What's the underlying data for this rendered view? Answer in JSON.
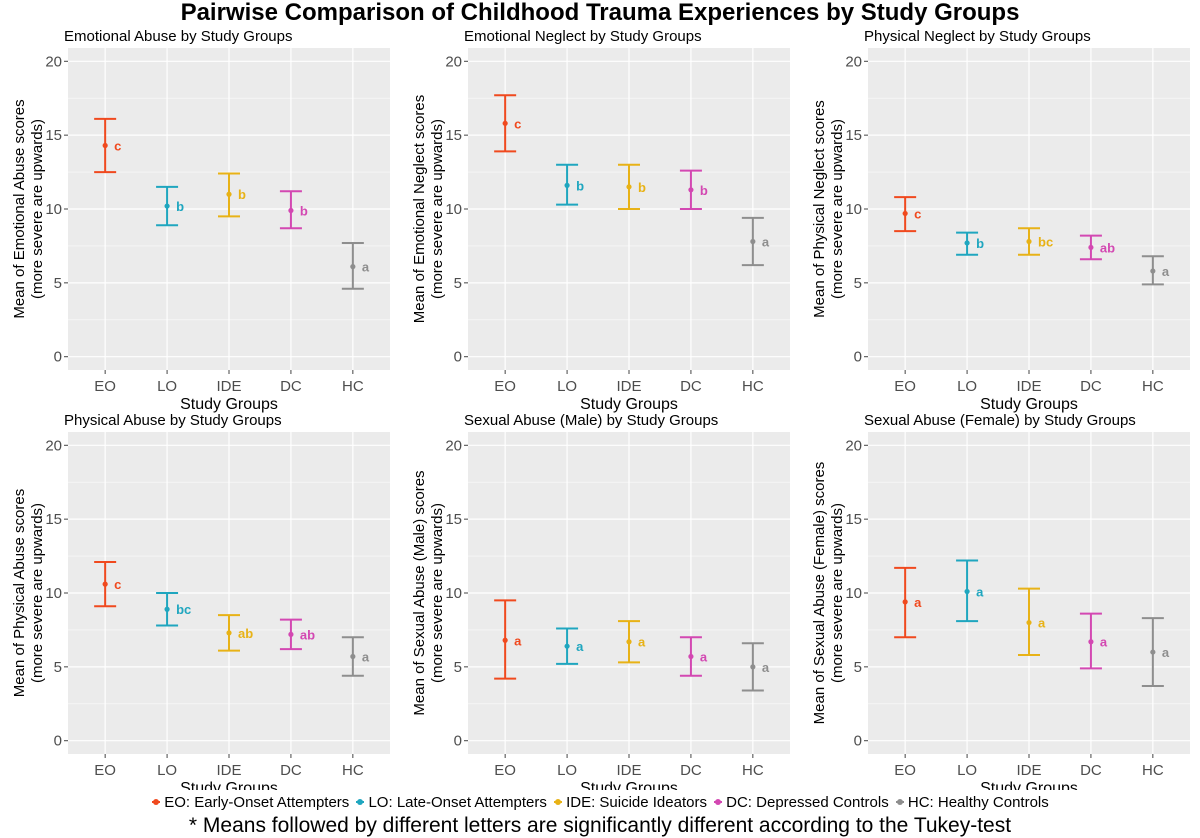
{
  "title": "Pairwise Comparison of Childhood Trauma Experiences by Study Groups",
  "footnote": "* Means followed by different letters are significantly different according to the Tukey-test",
  "colors": {
    "EO": "#f0491e",
    "LO": "#1fa6bf",
    "IDE": "#e8b216",
    "DC": "#d348b2",
    "HC": "#8e8e8e",
    "panel_bg": "#ebebeb",
    "grid": "#ffffff"
  },
  "legend": [
    {
      "key": "EO",
      "label": "EO: Early-Onset Attempters"
    },
    {
      "key": "LO",
      "label": "LO: Late-Onset Attempters"
    },
    {
      "key": "IDE",
      "label": "IDE: Suicide Ideators"
    },
    {
      "key": "DC",
      "label": "DC: Depressed Controls"
    },
    {
      "key": "HC",
      "label": "HC: Healthy Controls"
    }
  ],
  "chart_data": [
    {
      "type": "errorbar",
      "title": "Emotional Abuse by Study Groups",
      "xlabel": "Study Groups",
      "ylabel": [
        "Mean of Emotional Abuse scores",
        "(more severe are upwards)"
      ],
      "categories": [
        "EO",
        "LO",
        "IDE",
        "DC",
        "HC"
      ],
      "ylim": [
        0,
        20
      ],
      "yticks": [
        0,
        5,
        10,
        15,
        20
      ],
      "mean": [
        14.3,
        10.2,
        11.0,
        9.9,
        6.1
      ],
      "lower": [
        12.5,
        8.9,
        9.5,
        8.7,
        4.6
      ],
      "upper": [
        16.1,
        11.5,
        12.4,
        11.2,
        7.7
      ],
      "letters": [
        "c",
        "b",
        "b",
        "b",
        "a"
      ]
    },
    {
      "type": "errorbar",
      "title": "Emotional Neglect by Study Groups",
      "xlabel": "Study Groups",
      "ylabel": [
        "Mean of Emotional Neglect scores",
        "(more severe are upwards)"
      ],
      "categories": [
        "EO",
        "LO",
        "IDE",
        "DC",
        "HC"
      ],
      "ylim": [
        0,
        20
      ],
      "yticks": [
        0,
        5,
        10,
        15,
        20
      ],
      "mean": [
        15.8,
        11.6,
        11.5,
        11.3,
        7.8
      ],
      "lower": [
        13.9,
        10.3,
        10.0,
        10.0,
        6.2
      ],
      "upper": [
        17.7,
        13.0,
        13.0,
        12.6,
        9.4
      ],
      "letters": [
        "c",
        "b",
        "b",
        "b",
        "a"
      ]
    },
    {
      "type": "errorbar",
      "title": "Physical Neglect by Study Groups",
      "xlabel": "Study Groups",
      "ylabel": [
        "Mean of Physical Neglect scores",
        "(more severe are upwards)"
      ],
      "categories": [
        "EO",
        "LO",
        "IDE",
        "DC",
        "HC"
      ],
      "ylim": [
        0,
        20
      ],
      "yticks": [
        0,
        5,
        10,
        15,
        20
      ],
      "mean": [
        9.7,
        7.7,
        7.8,
        7.4,
        5.8
      ],
      "lower": [
        8.5,
        6.9,
        6.9,
        6.6,
        4.9
      ],
      "upper": [
        10.8,
        8.4,
        8.7,
        8.2,
        6.8
      ],
      "letters": [
        "c",
        "b",
        "bc",
        "ab",
        "a"
      ]
    },
    {
      "type": "errorbar",
      "title": "Physical Abuse by Study Groups",
      "xlabel": "Study Groups",
      "ylabel": [
        "Mean of Physical Abuse scores",
        "(more severe are upwards)"
      ],
      "categories": [
        "EO",
        "LO",
        "IDE",
        "DC",
        "HC"
      ],
      "ylim": [
        0,
        20
      ],
      "yticks": [
        0,
        5,
        10,
        15,
        20
      ],
      "mean": [
        10.6,
        8.9,
        7.3,
        7.2,
        5.7
      ],
      "lower": [
        9.1,
        7.8,
        6.1,
        6.2,
        4.4
      ],
      "upper": [
        12.1,
        10.0,
        8.5,
        8.2,
        7.0
      ],
      "letters": [
        "c",
        "bc",
        "ab",
        "ab",
        "a"
      ]
    },
    {
      "type": "errorbar",
      "title": "Sexual Abuse (Male) by Study Groups",
      "xlabel": "Study Groups",
      "ylabel": [
        "Mean of Sexual Abuse (Male) scores",
        "(more severe are upwards)"
      ],
      "categories": [
        "EO",
        "LO",
        "IDE",
        "DC",
        "HC"
      ],
      "ylim": [
        0,
        20
      ],
      "yticks": [
        0,
        5,
        10,
        15,
        20
      ],
      "mean": [
        6.8,
        6.4,
        6.7,
        5.7,
        5.0
      ],
      "lower": [
        4.2,
        5.2,
        5.3,
        4.4,
        3.4
      ],
      "upper": [
        9.5,
        7.6,
        8.1,
        7.0,
        6.6
      ],
      "letters": [
        "a",
        "a",
        "a",
        "a",
        "a"
      ]
    },
    {
      "type": "errorbar",
      "title": "Sexual Abuse (Female) by Study Groups",
      "xlabel": "Study Groups",
      "ylabel": [
        "Mean of Sexual Abuse (Female) scores",
        "(more severe are upwards)"
      ],
      "categories": [
        "EO",
        "LO",
        "IDE",
        "DC",
        "HC"
      ],
      "ylim": [
        0,
        20
      ],
      "yticks": [
        0,
        5,
        10,
        15,
        20
      ],
      "mean": [
        9.4,
        10.1,
        8.0,
        6.7,
        6.0
      ],
      "lower": [
        7.0,
        8.1,
        5.8,
        4.9,
        3.7
      ],
      "upper": [
        11.7,
        12.2,
        10.3,
        8.6,
        8.3
      ],
      "letters": [
        "a",
        "a",
        "a",
        "a",
        "a"
      ]
    }
  ]
}
